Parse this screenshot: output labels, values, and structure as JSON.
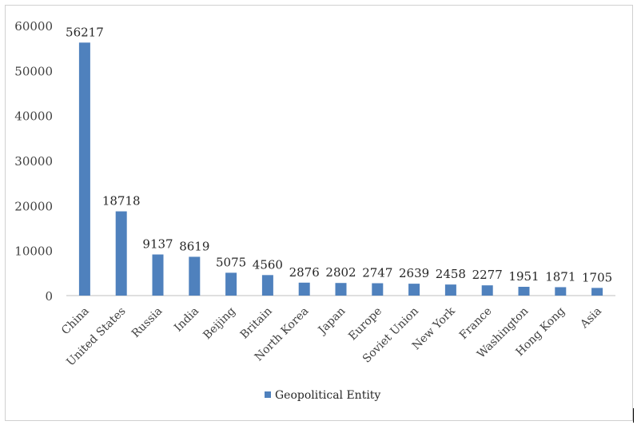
{
  "chart_data": {
    "type": "bar",
    "categories": [
      "China",
      "United States",
      "Russia",
      "India",
      "Beijing",
      "Britain",
      "North Korea",
      "Japan",
      "Europe",
      "Soviet Union",
      "New York",
      "France",
      "Washington",
      "Hong Kong",
      "Asia"
    ],
    "series": [
      {
        "name": "Geopolitical Entity",
        "values": [
          56217,
          18718,
          9137,
          8619,
          5075,
          4560,
          2876,
          2802,
          2747,
          2639,
          2458,
          2277,
          1951,
          1871,
          1705
        ],
        "data_labels": [
          "56217",
          "18718",
          "9137",
          "8619",
          "5075",
          "4560",
          "2876",
          "2802",
          "2747",
          "2639",
          "2458",
          "2277",
          "1951",
          "1871",
          "1705"
        ]
      }
    ],
    "ylim": [
      0,
      60000
    ],
    "yticks": [
      0,
      10000,
      20000,
      30000,
      40000,
      50000,
      60000
    ],
    "ytick_labels": [
      "0",
      "10000",
      "20000",
      "30000",
      "40000",
      "50000",
      "60000"
    ],
    "grid": false,
    "legend_position": "bottom",
    "bar_color": "#4f81bd"
  }
}
